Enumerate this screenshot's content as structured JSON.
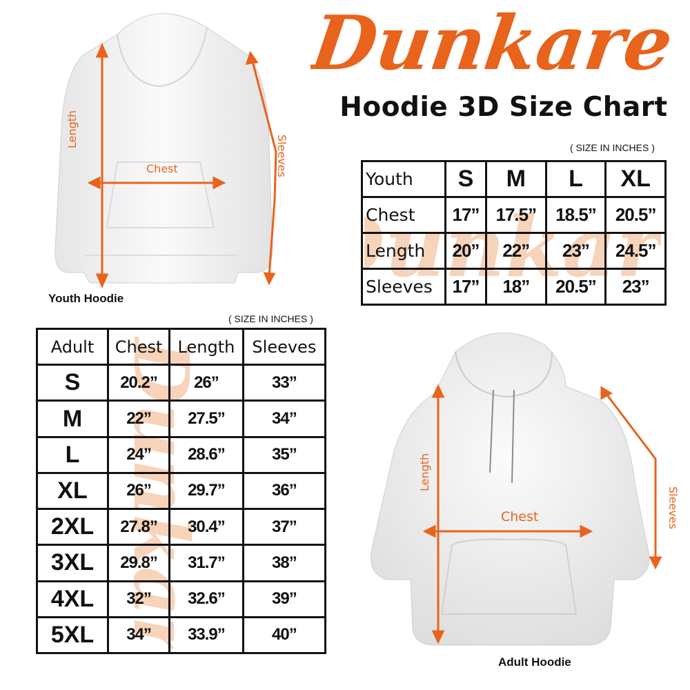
{
  "brand": {
    "logo_text": "Dunkare",
    "color": "#e8631c"
  },
  "title": "Hoodie 3D Size Chart",
  "youth": {
    "unit_note": "( SIZE IN INCHES )",
    "corner": "Youth",
    "sizes": [
      "S",
      "M",
      "L",
      "XL"
    ],
    "rows": [
      {
        "label": "Chest",
        "values": [
          "17”",
          "17.5”",
          "18.5”",
          "20.5”"
        ]
      },
      {
        "label": "Length",
        "values": [
          "20”",
          "22”",
          "23”",
          "24.5”"
        ]
      },
      {
        "label": "Sleeves",
        "values": [
          "17”",
          "18”",
          "20.5”",
          "23”"
        ]
      }
    ],
    "image_label": "Youth Hoodie",
    "measure_labels": {
      "length": "Length",
      "chest": "Chest",
      "sleeves": "Sleeves"
    }
  },
  "adult": {
    "unit_note": "( SIZE IN INCHES )",
    "headers": [
      "Adult",
      "Chest",
      "Length",
      "Sleeves"
    ],
    "rows": [
      {
        "size": "S",
        "values": [
          "20.2”",
          "26”",
          "33”"
        ]
      },
      {
        "size": "M",
        "values": [
          "22”",
          "27.5”",
          "34”"
        ]
      },
      {
        "size": "L",
        "values": [
          "24”",
          "28.6”",
          "35”"
        ]
      },
      {
        "size": "XL",
        "values": [
          "26”",
          "29.7”",
          "36”"
        ]
      },
      {
        "size": "2XL",
        "values": [
          "27.8”",
          "30.4”",
          "37”"
        ]
      },
      {
        "size": "3XL",
        "values": [
          "29.8”",
          "31.7”",
          "38”"
        ]
      },
      {
        "size": "4XL",
        "values": [
          "32”",
          "32.6”",
          "39”"
        ]
      },
      {
        "size": "5XL",
        "values": [
          "34”",
          "33.9”",
          "40”"
        ]
      }
    ],
    "image_label": "Adult Hoodie",
    "measure_labels": {
      "length": "Length",
      "chest": "Chest",
      "sleeves": "Sleeves"
    }
  }
}
